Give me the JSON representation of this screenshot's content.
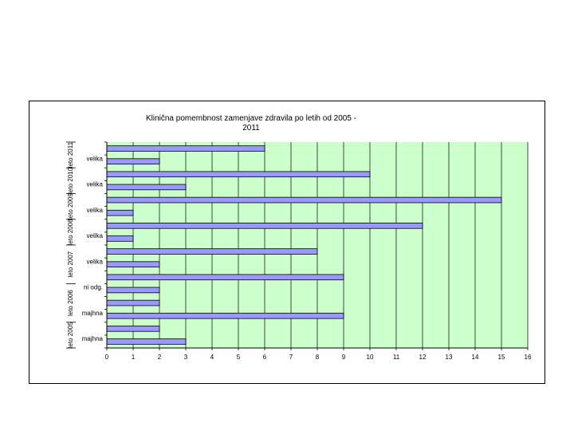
{
  "chart_data": {
    "type": "bar",
    "orientation": "horizontal",
    "title_lines": [
      "Klinična pomembnost zamenjave zdravila po letih od 2005 -",
      "2011"
    ],
    "xlim": [
      0,
      16
    ],
    "x_ticks": [
      0,
      1,
      2,
      3,
      4,
      5,
      6,
      7,
      8,
      9,
      10,
      11,
      12,
      13,
      14,
      15,
      16
    ],
    "grid": "vertical",
    "plot_background": "#ccffcc",
    "bar_color": "#9999ff",
    "bar_edge": "#000000",
    "groups": [
      {
        "label": "leto 2005",
        "bars": [
          {
            "category": "majhna",
            "value": 3
          },
          {
            "category": "",
            "value": 2
          }
        ]
      },
      {
        "label": "leto 2006",
        "bars": [
          {
            "category": "majhna",
            "value": 9
          },
          {
            "category": "",
            "value": 2
          },
          {
            "category": "ni odg.",
            "value": 2
          }
        ]
      },
      {
        "label": "leto 2007",
        "bars": [
          {
            "category": "",
            "value": 9
          },
          {
            "category": "velika",
            "value": 2
          },
          {
            "category": "",
            "value": 8
          }
        ]
      },
      {
        "label": "leto 2008",
        "bars": [
          {
            "category": "velika",
            "value": 1
          },
          {
            "category": "",
            "value": 12
          }
        ]
      },
      {
        "label": "leto 2009",
        "bars": [
          {
            "category": "velika",
            "value": 1
          },
          {
            "category": "",
            "value": 15
          }
        ]
      },
      {
        "label": "leto 2010",
        "bars": [
          {
            "category": "velika",
            "value": 3
          },
          {
            "category": "",
            "value": 10
          }
        ]
      },
      {
        "label": "leto 2011",
        "bars": [
          {
            "category": "velika",
            "value": 2
          },
          {
            "category": "",
            "value": 6
          }
        ]
      }
    ]
  }
}
